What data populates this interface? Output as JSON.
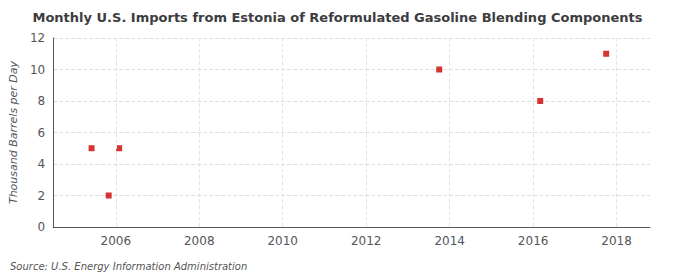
{
  "chart_data": {
    "type": "scatter",
    "title": "Monthly U.S. Imports from Estonia of Reformulated Gasoline Blending Components",
    "ylabel": "Thousand Barrels per Day",
    "annotations": [
      "Source: U.S. Energy Information Administration"
    ],
    "x": [
      2005.42,
      2005.83,
      2006.08,
      2013.75,
      2016.17,
      2017.75
    ],
    "values": [
      5,
      2,
      5,
      10,
      8,
      11
    ],
    "color": "#cc0000",
    "marker": "square",
    "xlim": [
      2004.5,
      2018.8
    ],
    "xticks": [
      2006,
      2008,
      2010,
      2012,
      2014,
      2016,
      2018
    ],
    "ylim": [
      0,
      12
    ],
    "yticks": [
      0,
      2,
      4,
      6,
      8,
      10,
      12
    ],
    "grid": true
  }
}
